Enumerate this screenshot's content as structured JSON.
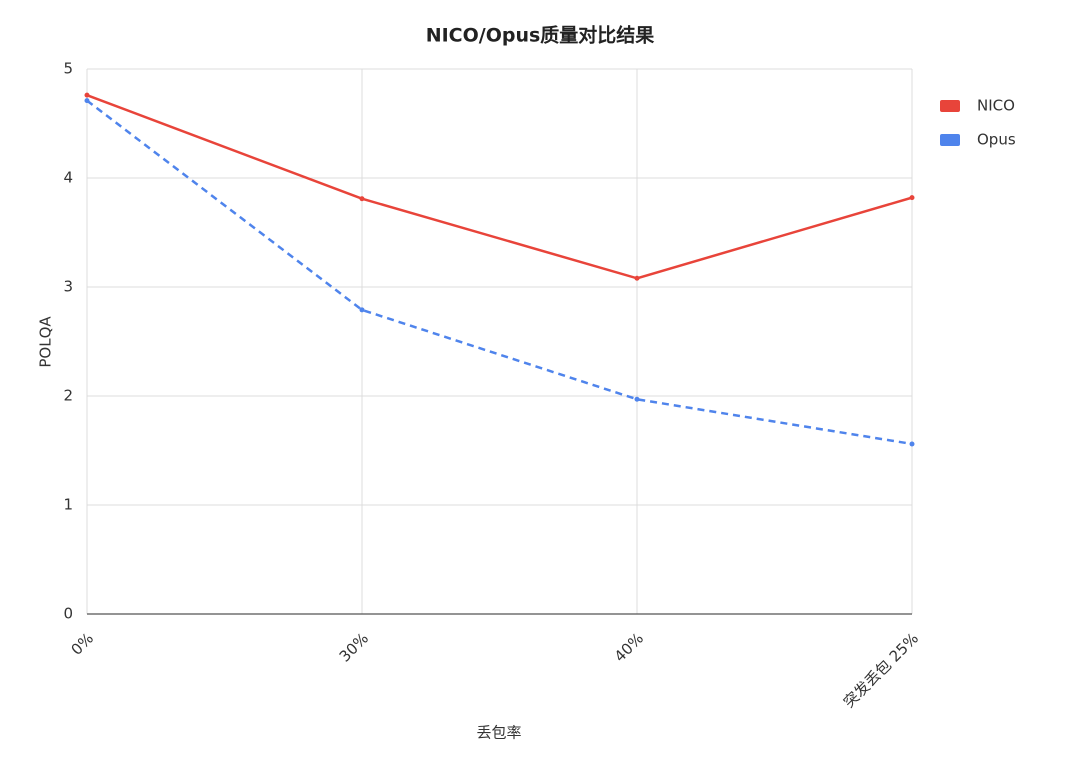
{
  "chart_data": {
    "type": "line",
    "title": "NICO/Opus质量对比结果",
    "x_label": "丢包率",
    "y_label": "POLQA",
    "categories": [
      "0%",
      "30%",
      "40%",
      "突发丢包 25%"
    ],
    "series": [
      {
        "name": "NICO",
        "color": "#e8443a",
        "line_style": "solid",
        "values": [
          4.76,
          3.81,
          3.08,
          3.82
        ]
      },
      {
        "name": "Opus",
        "color": "#4f84ec",
        "line_style": "dashed",
        "values": [
          4.71,
          2.79,
          1.97,
          1.56
        ]
      }
    ],
    "ylim": [
      0,
      5
    ],
    "yticks": [
      0,
      1,
      2,
      3,
      4,
      5
    ],
    "grid": true,
    "legend": "right"
  }
}
